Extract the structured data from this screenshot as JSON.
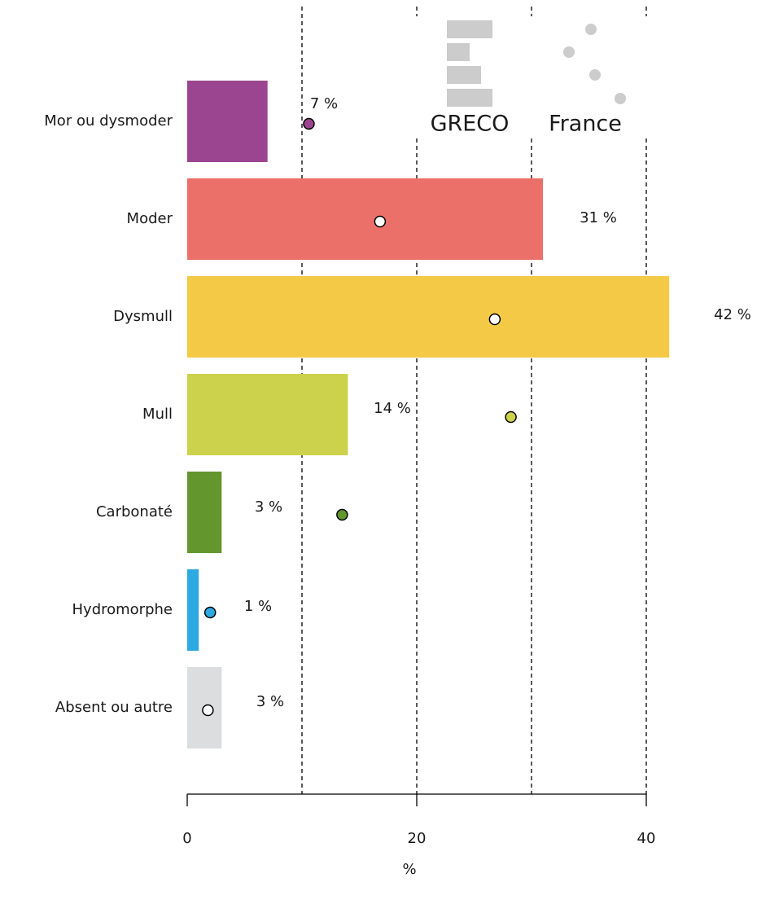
{
  "chart_data": {
    "type": "bar",
    "orientation": "horizontal",
    "categories": [
      "Mor ou dysmoder",
      "Moder",
      "Dysmull",
      "Mull",
      "Carbonaté",
      "Hydromorphe",
      "Absent ou autre"
    ],
    "series": [
      {
        "name": "GRECO",
        "type": "bar",
        "color": "#cccccc",
        "colors": [
          "#9b4590",
          "#ec706a",
          "#f4c945",
          "#cdd24c",
          "#63962d",
          "#2ba9e0",
          "#dcdddf"
        ],
        "values": [
          7,
          31,
          42,
          14,
          3,
          1,
          3
        ],
        "value_labels": [
          "7 %",
          "31 %",
          "42 %",
          "14 %",
          "3 %",
          "1 %",
          "3 %"
        ]
      },
      {
        "name": "France",
        "type": "dot",
        "color": "#cccccc",
        "colors": [
          "#9b4590",
          "#ffffff",
          "#ffffff",
          "#cdd24c",
          "#63962d",
          "#2ba9e0",
          "#ffffff"
        ],
        "values": [
          10.6,
          16.8,
          26.8,
          28.2,
          13.5,
          2.0,
          1.8
        ]
      }
    ],
    "xlabel": "%",
    "xlim": [
      0,
      40
    ],
    "xticks": [
      0,
      20,
      40
    ],
    "xgrid": [
      10,
      20,
      30,
      40
    ],
    "grid_style": "dashed",
    "legend": "top-right"
  }
}
